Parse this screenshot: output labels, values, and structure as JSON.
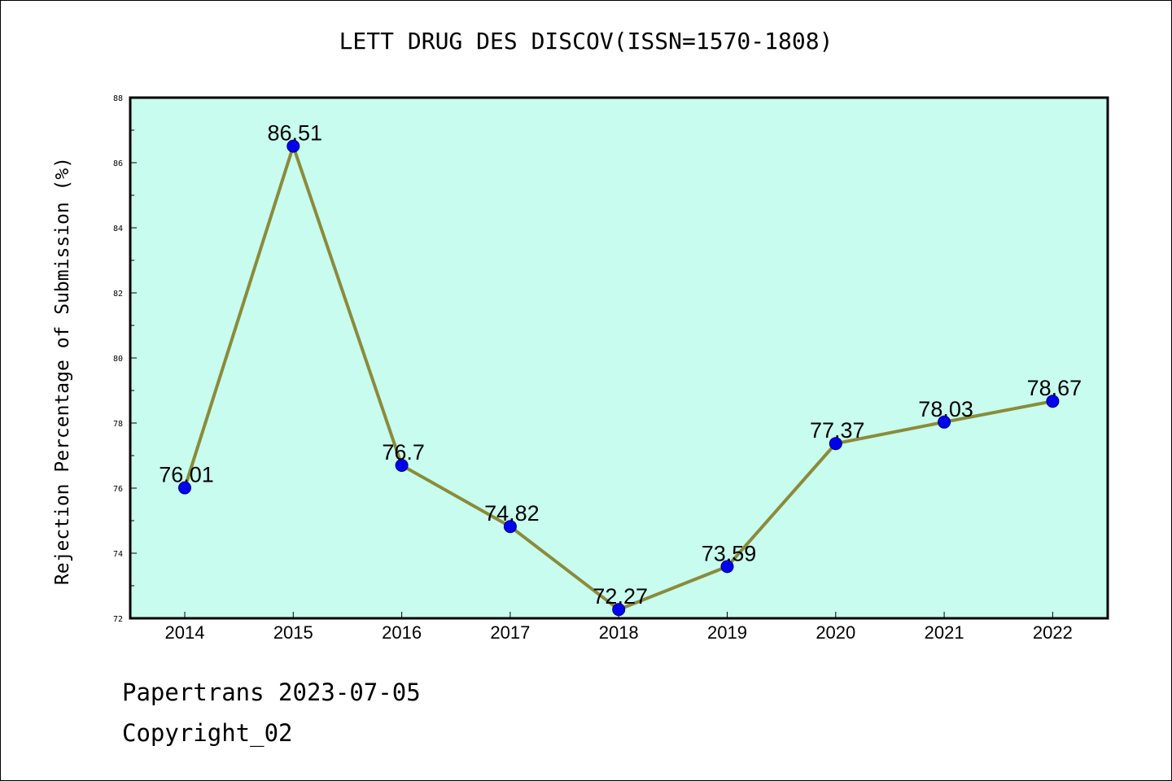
{
  "chart_data": {
    "type": "line",
    "title": "LETT DRUG DES DISCOV(ISSN=1570-1808)",
    "xlabel": "",
    "ylabel": "Rejection Percentage of Submission (%)",
    "categories": [
      "2014",
      "2015",
      "2016",
      "2017",
      "2018",
      "2019",
      "2020",
      "2021",
      "2022"
    ],
    "values": [
      76.01,
      86.51,
      76.7,
      74.82,
      72.27,
      73.59,
      77.37,
      78.03,
      78.67
    ],
    "data_labels": [
      "76.01",
      "86.51",
      "76.7",
      "74.82",
      "72.27",
      "73.59",
      "77.37",
      "78.03",
      "78.67"
    ],
    "ylim": [
      72,
      88
    ],
    "y_ticks": [
      "72",
      "74",
      "76",
      "78",
      "80",
      "82",
      "84",
      "86",
      "88"
    ],
    "grid": false,
    "legend": "none",
    "colors": {
      "plot_background": "#c7fcee",
      "line": "#8b8b3a",
      "marker_fill": "#0000ee",
      "marker_edge": "#00007a"
    }
  },
  "footer": {
    "line1": "Papertrans 2023-07-05",
    "line2": "Copyright_02"
  }
}
